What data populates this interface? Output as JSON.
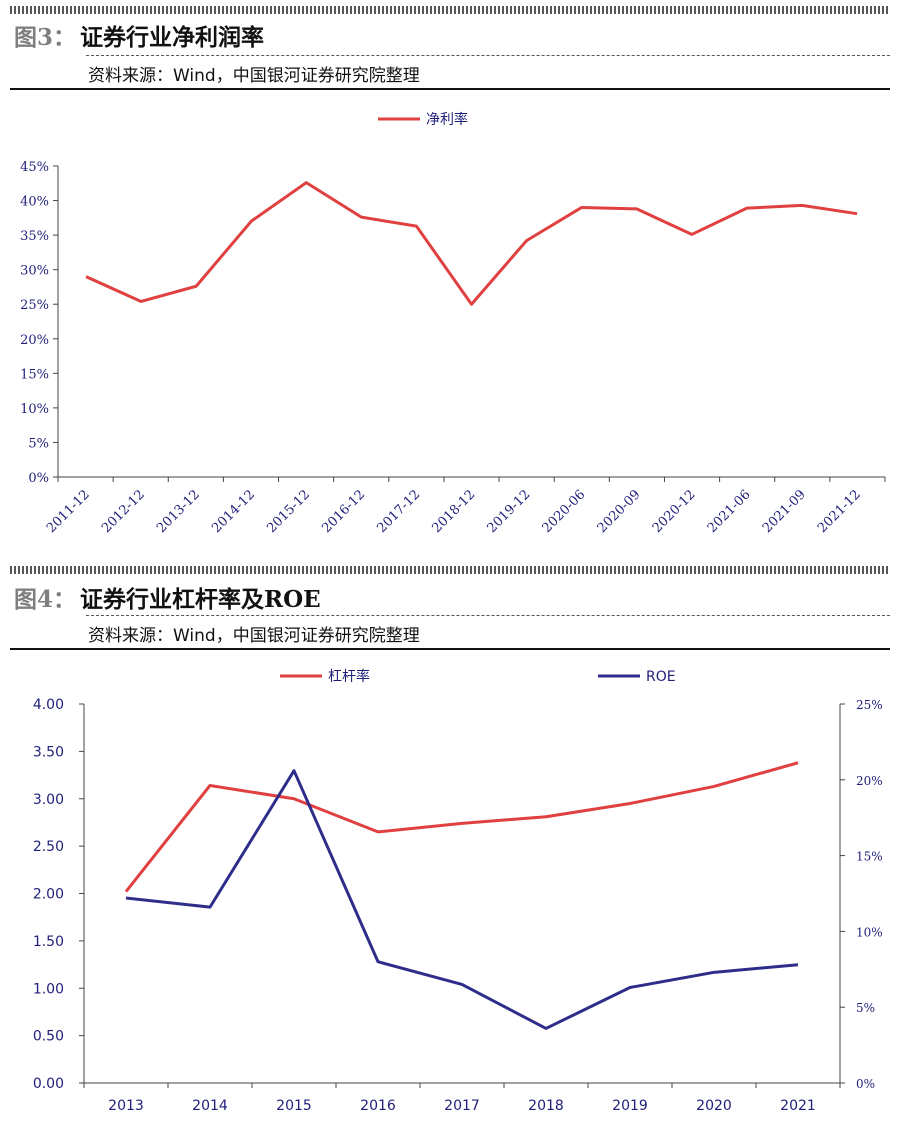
{
  "figure3": {
    "num": "图3：",
    "title": "证券行业净利润率",
    "source": "资料来源：Wind，中国银河证券研究院整理"
  },
  "figure4": {
    "num": "图4：",
    "title": "证券行业杠杆率及ROE",
    "source": "资料来源：Wind，中国银河证券研究院整理"
  },
  "colors": {
    "red": "#e04040",
    "navy": "#2e2e8a",
    "text": "#1f1f7a"
  },
  "chart_data": [
    {
      "type": "line",
      "title": "",
      "categories": [
        "2011-12",
        "2012-12",
        "2013-12",
        "2014-12",
        "2015-12",
        "2016-12",
        "2017-12",
        "2018-12",
        "2019-12",
        "2020-06",
        "2020-09",
        "2020-12",
        "2021-06",
        "2021-09",
        "2021-12"
      ],
      "series": [
        {
          "name": "净利率",
          "values": [
            29.0,
            25.4,
            27.6,
            37.0,
            42.6,
            37.6,
            36.3,
            25.0,
            34.2,
            39.0,
            38.8,
            35.1,
            38.9,
            39.3,
            38.1
          ]
        }
      ],
      "ylim": [
        0,
        45
      ],
      "yticks": [
        "0%",
        "5%",
        "10%",
        "15%",
        "20%",
        "25%",
        "30%",
        "35%",
        "40%",
        "45%"
      ],
      "xlabel": "",
      "ylabel": "",
      "legend_position": "top-center",
      "grid": false
    },
    {
      "type": "line",
      "title": "",
      "categories": [
        "2013",
        "2014",
        "2015",
        "2016",
        "2017",
        "2018",
        "2019",
        "2020",
        "2021"
      ],
      "series": [
        {
          "name": "杠杆率",
          "axis": "left",
          "values": [
            2.02,
            3.14,
            3.0,
            2.65,
            2.74,
            2.81,
            2.95,
            3.13,
            3.38
          ]
        },
        {
          "name": "ROE",
          "axis": "right",
          "values": [
            12.2,
            11.6,
            20.6,
            8.0,
            6.5,
            3.6,
            6.3,
            7.3,
            7.8
          ]
        }
      ],
      "ylim_left": [
        0,
        4
      ],
      "ylim_right": [
        0,
        25
      ],
      "yticks_left": [
        "0.00",
        "0.50",
        "1.00",
        "1.50",
        "2.00",
        "2.50",
        "3.00",
        "3.50",
        "4.00"
      ],
      "yticks_right": [
        "0%",
        "5%",
        "10%",
        "15%",
        "20%",
        "25%"
      ],
      "legend_position": "top-center",
      "grid": false
    }
  ]
}
